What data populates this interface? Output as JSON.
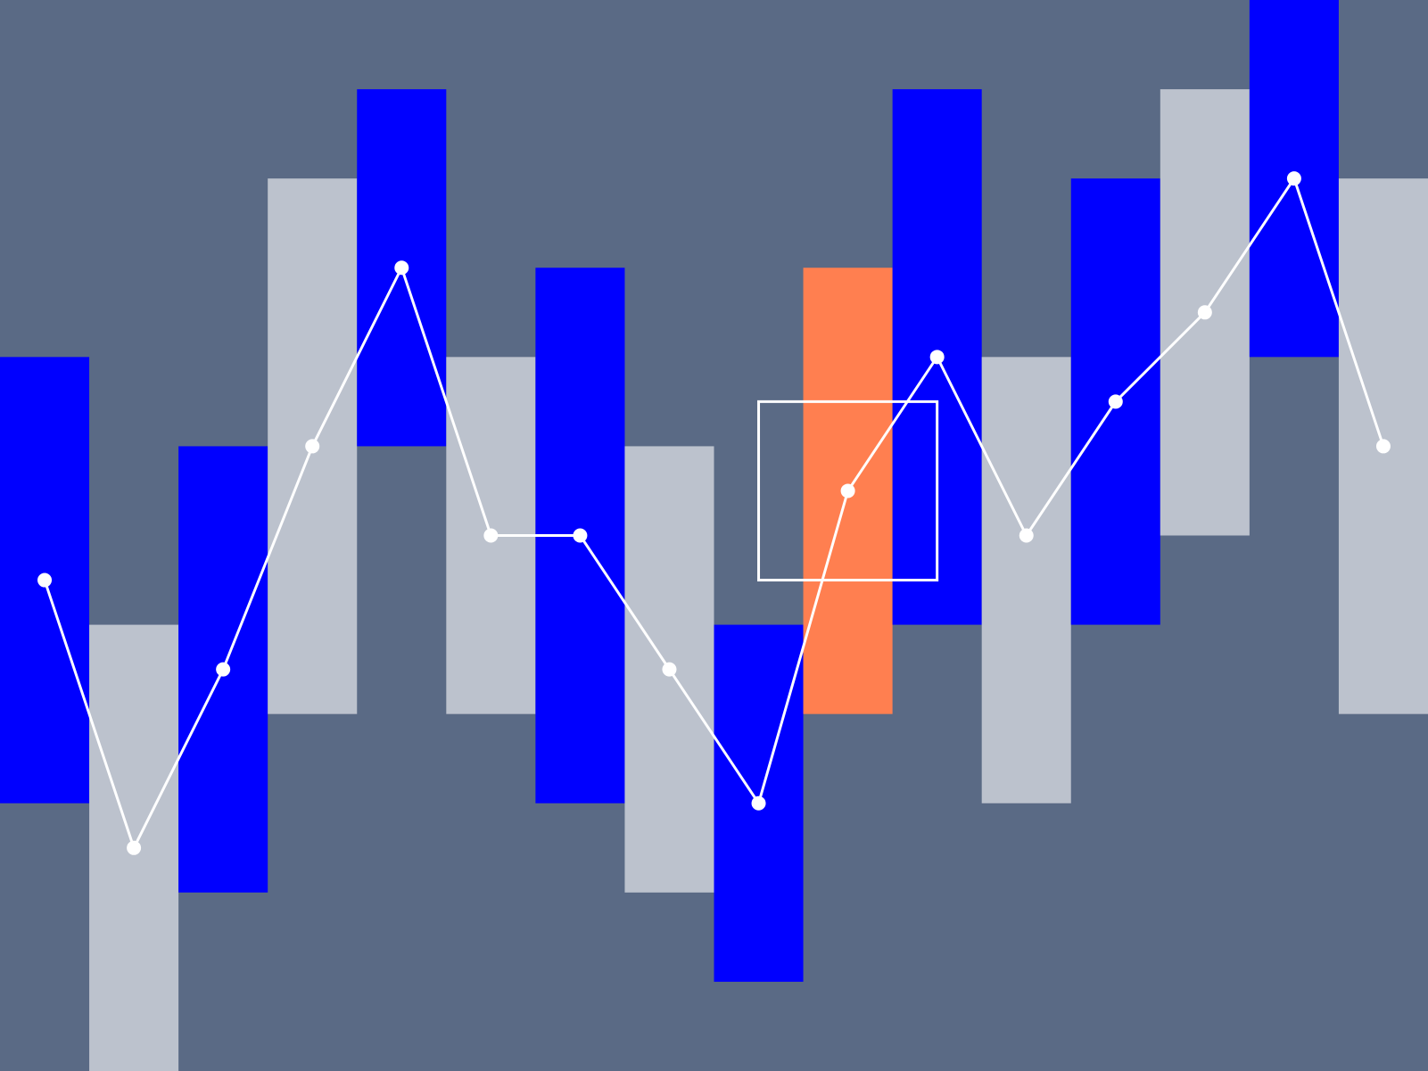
{
  "chart_data": {
    "type": "bar",
    "title": "",
    "xlabel": "",
    "ylabel": "",
    "xlim": [
      0,
      16
    ],
    "ylim": [
      0,
      12
    ],
    "grid": false,
    "colors": {
      "background": "#5a6a85",
      "primary": "#0000ff",
      "secondary": "#bcc2cd",
      "highlight": "#ff7f50",
      "line": "#ffffff"
    },
    "bars": [
      {
        "low": 3,
        "high": 8,
        "color": "primary"
      },
      {
        "low": 0,
        "high": 5,
        "color": "secondary"
      },
      {
        "low": 2,
        "high": 7,
        "color": "primary"
      },
      {
        "low": 4,
        "high": 10,
        "color": "secondary"
      },
      {
        "low": 7,
        "high": 11,
        "color": "primary"
      },
      {
        "low": 4,
        "high": 8,
        "color": "secondary"
      },
      {
        "low": 3,
        "high": 9,
        "color": "primary"
      },
      {
        "low": 2,
        "high": 7,
        "color": "secondary"
      },
      {
        "low": 1,
        "high": 5,
        "color": "primary"
      },
      {
        "low": 4,
        "high": 9,
        "color": "highlight"
      },
      {
        "low": 5,
        "high": 11,
        "color": "primary"
      },
      {
        "low": 3,
        "high": 8,
        "color": "secondary"
      },
      {
        "low": 5,
        "high": 10,
        "color": "primary"
      },
      {
        "low": 6,
        "high": 11,
        "color": "secondary"
      },
      {
        "low": 8,
        "high": 12,
        "color": "primary"
      },
      {
        "low": 4,
        "high": 10,
        "color": "secondary"
      }
    ],
    "line_values": [
      5.5,
      2.5,
      4.5,
      7,
      9,
      6,
      6,
      4.5,
      3,
      6.5,
      8,
      6,
      7.5,
      8.5,
      10,
      7
    ],
    "selection_box": {
      "x": [
        8.5,
        10.5
      ],
      "y": [
        5.5,
        7.5
      ]
    }
  }
}
